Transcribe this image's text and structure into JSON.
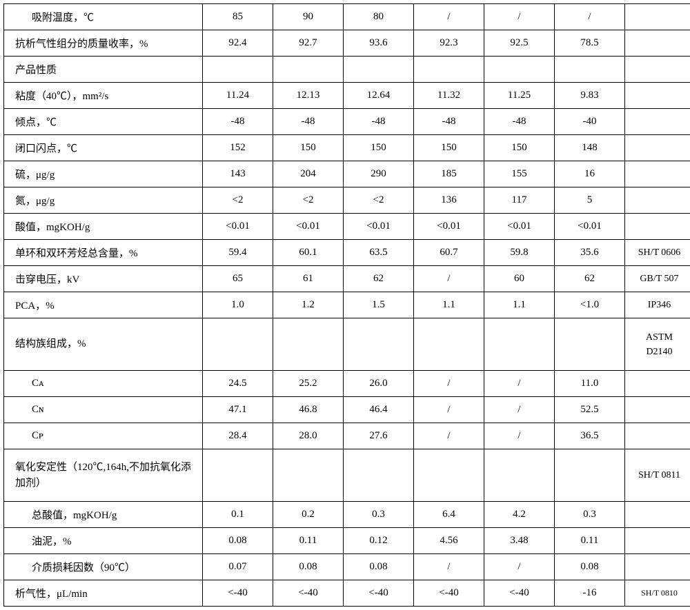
{
  "table": {
    "rows": [
      {
        "label": "吸附温度，℃",
        "indent": true,
        "values": [
          "85",
          "90",
          "80",
          "/",
          "/",
          "/"
        ],
        "method": ""
      },
      {
        "label": "抗析气性组分的质量收率，%",
        "values": [
          "92.4",
          "92.7",
          "93.6",
          "92.3",
          "92.5",
          "78.5"
        ],
        "method": ""
      },
      {
        "label": "产品性质",
        "values": [
          "",
          "",
          "",
          "",
          "",
          ""
        ],
        "method": ""
      },
      {
        "label": "粘度（40℃），mm²/s",
        "values": [
          "11.24",
          "12.13",
          "12.64",
          "11.32",
          "11.25",
          "9.83"
        ],
        "method": ""
      },
      {
        "label": "倾点，℃",
        "values": [
          "-48",
          "-48",
          "-48",
          "-48",
          "-48",
          "-40"
        ],
        "method": ""
      },
      {
        "label": "闭口闪点，℃",
        "values": [
          "152",
          "150",
          "150",
          "150",
          "150",
          "148"
        ],
        "method": ""
      },
      {
        "label": "硫，μg/g",
        "values": [
          "143",
          "204",
          "290",
          "185",
          "155",
          "16"
        ],
        "method": ""
      },
      {
        "label": "氮，μg/g",
        "values": [
          "<2",
          "<2",
          "<2",
          "136",
          "117",
          "5"
        ],
        "method": ""
      },
      {
        "label": "酸值，mgKOH/g",
        "values": [
          "<0.01",
          "<0.01",
          "<0.01",
          "<0.01",
          "<0.01",
          "<0.01"
        ],
        "method": ""
      },
      {
        "label": "单环和双环芳烃总含量，%",
        "values": [
          "59.4",
          "60.1",
          "63.5",
          "60.7",
          "59.8",
          "35.6"
        ],
        "method": "SH/T 0606"
      },
      {
        "label": "击穿电压，kV",
        "values": [
          "65",
          "61",
          "62",
          "/",
          "60",
          "62"
        ],
        "method": "GB/T 507"
      },
      {
        "label": "PCA，%",
        "values": [
          "1.0",
          "1.2",
          "1.5",
          "1.1",
          "1.1",
          "<1.0"
        ],
        "method": "IP346"
      },
      {
        "label": "结构族组成，%",
        "values": [
          "",
          "",
          "",
          "",
          "",
          ""
        ],
        "method": "ASTM D2140",
        "tall": true
      },
      {
        "label": "Cᴀ",
        "indent": true,
        "values": [
          "24.5",
          "25.2",
          "26.0",
          "/",
          "/",
          "11.0"
        ],
        "method": ""
      },
      {
        "label": "Cɴ",
        "indent": true,
        "values": [
          "47.1",
          "46.8",
          "46.4",
          "/",
          "/",
          "52.5"
        ],
        "method": ""
      },
      {
        "label": "Cᴘ",
        "indent": true,
        "values": [
          "28.4",
          "28.0",
          "27.6",
          "/",
          "/",
          "36.5"
        ],
        "method": ""
      },
      {
        "label": "氧化安定性（120℃,164h,不加抗氧化添加剂）",
        "values": [
          "",
          "",
          "",
          "",
          "",
          ""
        ],
        "method": "SH/T 0811",
        "tall": true
      },
      {
        "label": "总酸值，mgKOH/g",
        "indent": true,
        "values": [
          "0.1",
          "0.2",
          "0.3",
          "6.4",
          "4.2",
          "0.3"
        ],
        "method": ""
      },
      {
        "label": "油泥，%",
        "indent": true,
        "values": [
          "0.08",
          "0.11",
          "0.12",
          "4.56",
          "3.48",
          "0.11"
        ],
        "method": ""
      },
      {
        "label": "介质损耗因数（90℃）",
        "indent": true,
        "values": [
          "0.07",
          "0.08",
          "0.08",
          "/",
          "/",
          "0.08"
        ],
        "method": ""
      },
      {
        "label": "析气性，μL/min",
        "values": [
          "<-40",
          "<-40",
          "<-40",
          "<-40",
          "<-40",
          "-16"
        ],
        "method": "SH/T 0810",
        "method_small": true
      }
    ],
    "col_widths": {
      "label": 288,
      "value": 102,
      "method": 100
    },
    "colors": {
      "border": "#000000",
      "background": "#ffffff",
      "text": "#000000"
    },
    "font_size": 15,
    "method_font_size": 14
  }
}
